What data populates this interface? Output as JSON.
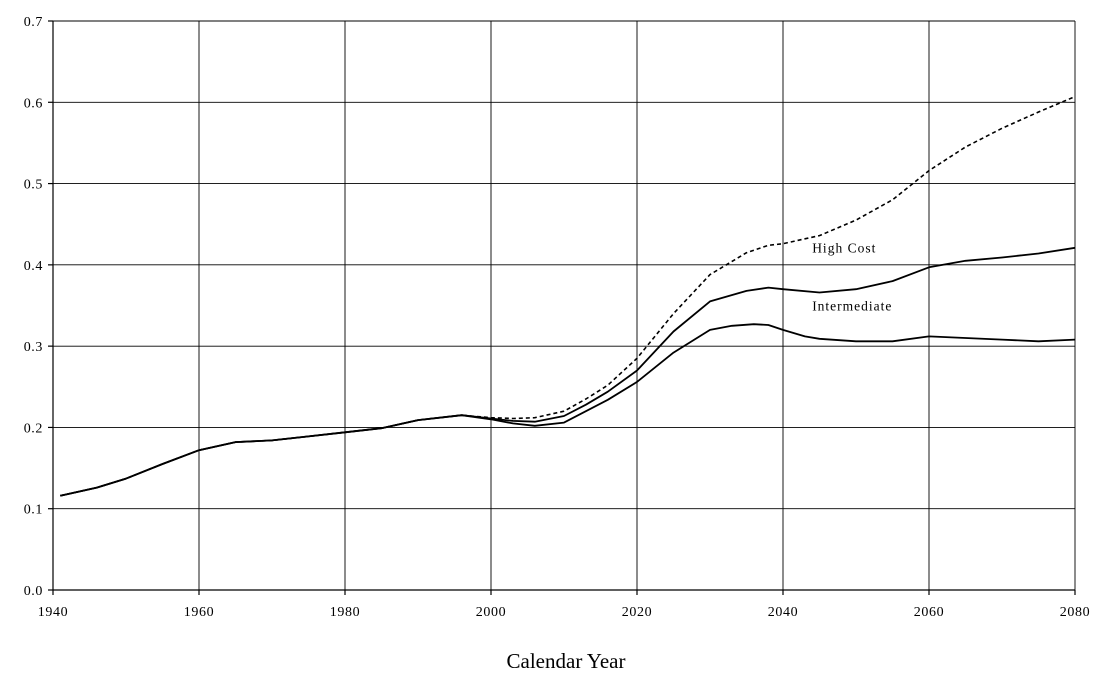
{
  "chart_data": {
    "type": "line",
    "title": "",
    "xlabel": "Calendar Year",
    "ylabel": "",
    "xlim": [
      1940,
      2080
    ],
    "ylim": [
      0.0,
      0.7
    ],
    "x_ticks": [
      1940,
      1960,
      1980,
      2000,
      2020,
      2040,
      2060,
      2080
    ],
    "y_ticks": [
      "0.0",
      "0.1",
      "0.2",
      "0.3",
      "0.4",
      "0.5",
      "0.6",
      "0.7"
    ],
    "grid": true,
    "series": [
      {
        "name": "High Cost",
        "style": "dashed",
        "x": [
          1941,
          1943,
          1946,
          1950,
          1955,
          1960,
          1965,
          1970,
          1975,
          1980,
          1985,
          1990,
          1996,
          2000,
          2003,
          2006,
          2010,
          2013,
          2016,
          2020,
          2025,
          2030,
          2035,
          2038,
          2040,
          2045,
          2050,
          2055,
          2060,
          2065,
          2070,
          2075,
          2080
        ],
        "values": [
          0.116,
          0.12,
          0.126,
          0.137,
          0.155,
          0.172,
          0.182,
          0.184,
          0.189,
          0.194,
          0.199,
          0.209,
          0.215,
          0.212,
          0.211,
          0.212,
          0.22,
          0.235,
          0.252,
          0.285,
          0.34,
          0.388,
          0.415,
          0.424,
          0.426,
          0.436,
          0.455,
          0.48,
          0.516,
          0.545,
          0.568,
          0.588,
          0.607
        ]
      },
      {
        "name": "Intermediate",
        "style": "solid",
        "x": [
          1941,
          1943,
          1946,
          1950,
          1955,
          1960,
          1965,
          1970,
          1975,
          1980,
          1985,
          1990,
          1996,
          2000,
          2003,
          2006,
          2010,
          2013,
          2016,
          2020,
          2025,
          2030,
          2035,
          2038,
          2040,
          2045,
          2050,
          2055,
          2060,
          2065,
          2070,
          2075,
          2080
        ],
        "values": [
          0.116,
          0.12,
          0.126,
          0.137,
          0.155,
          0.172,
          0.182,
          0.184,
          0.189,
          0.194,
          0.199,
          0.209,
          0.215,
          0.211,
          0.208,
          0.207,
          0.214,
          0.228,
          0.244,
          0.27,
          0.318,
          0.355,
          0.368,
          0.372,
          0.37,
          0.366,
          0.37,
          0.38,
          0.397,
          0.405,
          0.409,
          0.414,
          0.421
        ]
      },
      {
        "name": "",
        "style": "solid",
        "x": [
          1941,
          1943,
          1946,
          1950,
          1955,
          1960,
          1965,
          1970,
          1975,
          1980,
          1985,
          1990,
          1996,
          2000,
          2003,
          2006,
          2010,
          2013,
          2016,
          2020,
          2025,
          2030,
          2033,
          2036,
          2038,
          2040,
          2043,
          2045,
          2050,
          2055,
          2060,
          2065,
          2070,
          2075,
          2080
        ],
        "values": [
          0.116,
          0.12,
          0.126,
          0.137,
          0.155,
          0.172,
          0.182,
          0.184,
          0.189,
          0.194,
          0.199,
          0.209,
          0.215,
          0.21,
          0.205,
          0.202,
          0.206,
          0.22,
          0.234,
          0.256,
          0.292,
          0.32,
          0.325,
          0.327,
          0.326,
          0.32,
          0.312,
          0.309,
          0.306,
          0.306,
          0.312,
          0.31,
          0.308,
          0.306,
          0.308
        ]
      }
    ],
    "annotations": [
      {
        "text": "High Cost",
        "x": 2044,
        "y": 0.415
      },
      {
        "text": "Intermediate",
        "x": 2044,
        "y": 0.344
      }
    ]
  }
}
